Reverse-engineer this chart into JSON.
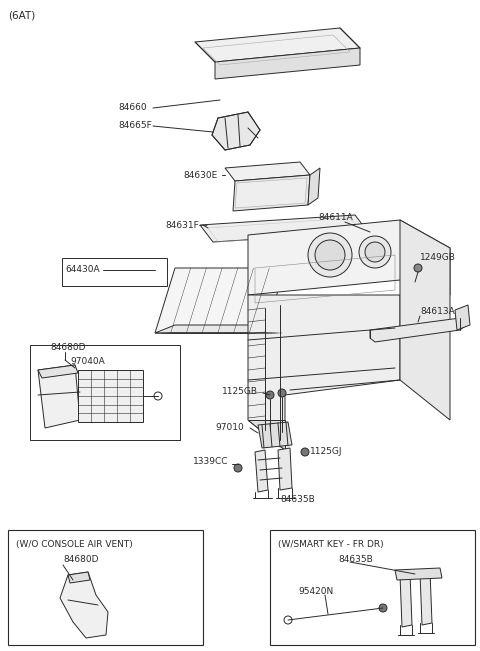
{
  "title": "(6AT)",
  "bg_color": "#ffffff",
  "line_color": "#2a2a2a",
  "text_color": "#2a2a2a",
  "fig_width": 4.8,
  "fig_height": 6.51,
  "dpi": 100,
  "box1_label": "(W/O CONSOLE AIR VENT)",
  "box1_label2": "84680D",
  "box2_label": "(W/SMART KEY - FR DR)",
  "box2_label2": "84635B",
  "box2_label3": "95420N"
}
